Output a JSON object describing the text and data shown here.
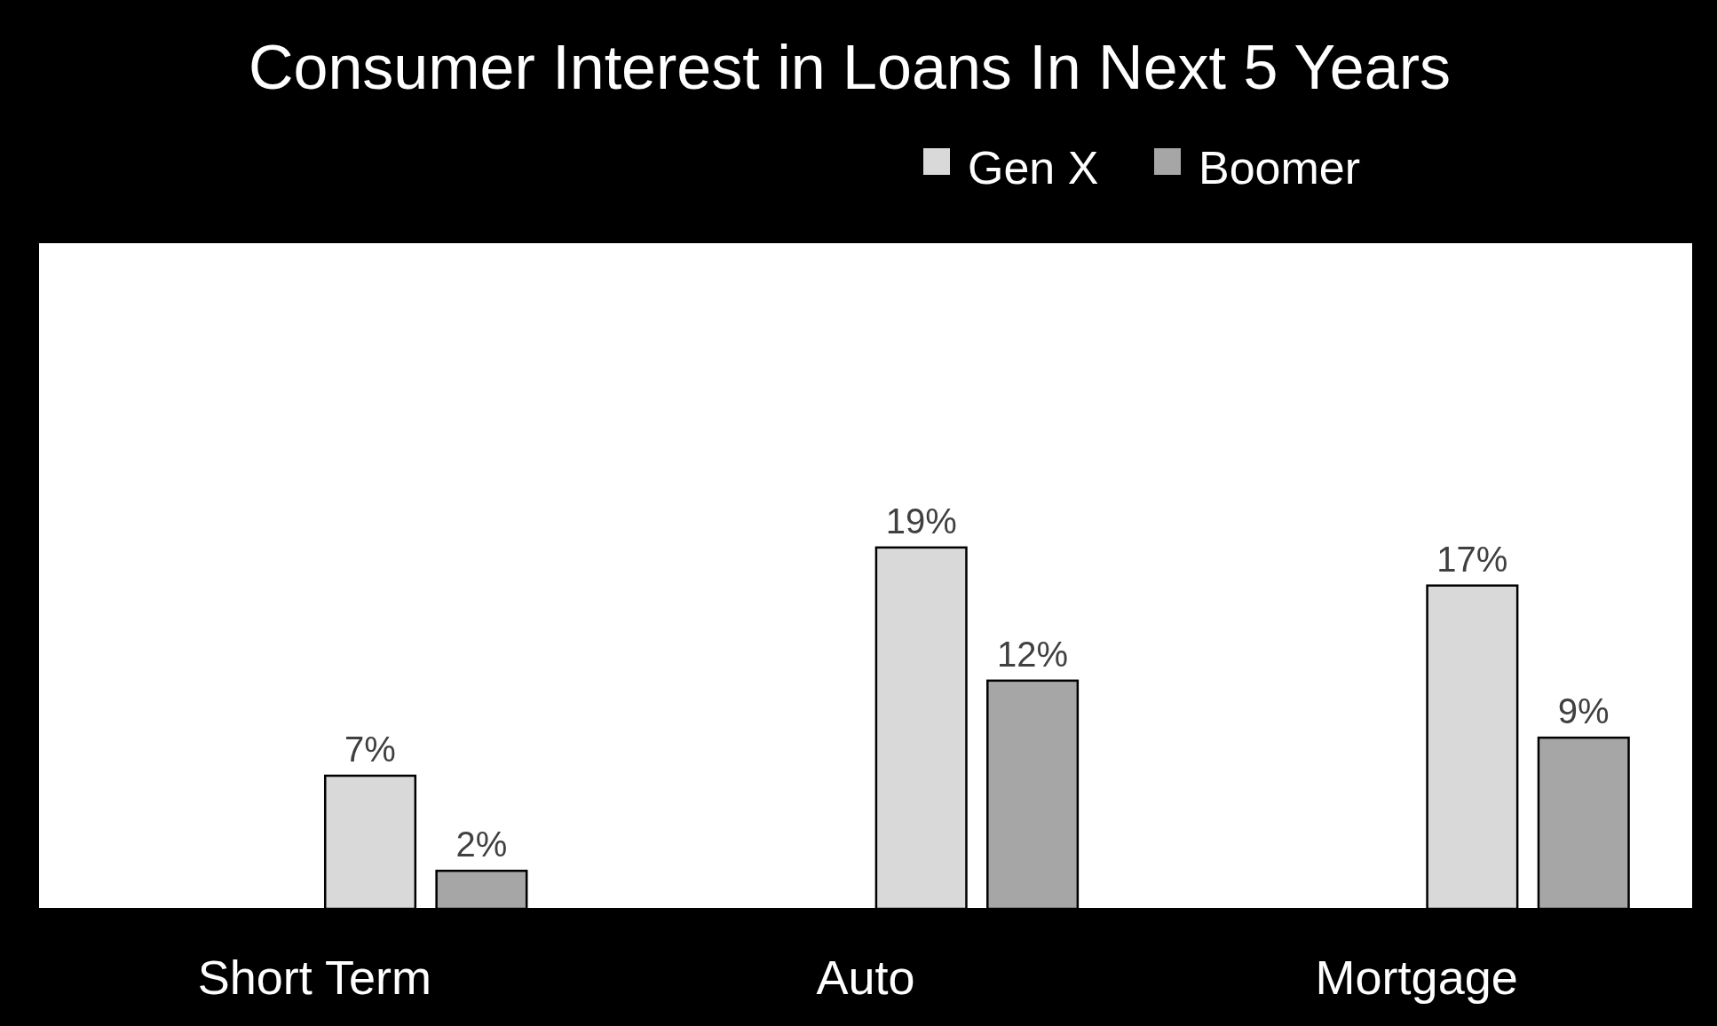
{
  "chart_data": {
    "type": "bar",
    "title": "Consumer Interest in Loans In Next 5 Years",
    "categories": [
      "Short Term",
      "Auto",
      "Mortgage"
    ],
    "ylim": [
      0,
      35
    ],
    "legend": "top right",
    "tick_labels": "x",
    "series": [
      {
        "color": "#ffffff",
        "values": [
          0,
          0,
          0
        ]
      },
      {
        "color": "#ffffff",
        "values": [
          0,
          0,
          0
        ]
      },
      {
        "name": "Gen X",
        "color": "#d9d9d9",
        "values": [
          7,
          19,
          17
        ],
        "value_labels": [
          "7%",
          "19%",
          "17%"
        ]
      },
      {
        "name": "Boomer",
        "color": "#a6a6a6",
        "values": [
          2,
          12,
          9
        ],
        "value_labels": [
          "2%",
          "12%",
          "9%"
        ]
      }
    ]
  }
}
